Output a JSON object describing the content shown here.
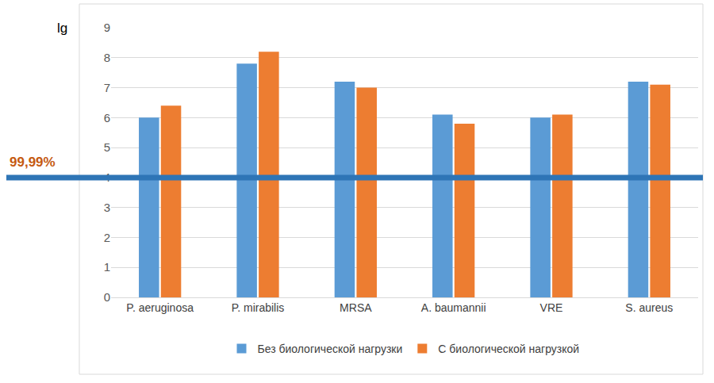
{
  "chart_data": {
    "type": "bar",
    "y_label": "lg",
    "categories": [
      "P. aeruginosa",
      "P. mirabilis",
      "MRSA",
      "A. baumannii",
      "VRE",
      "S. aureus"
    ],
    "series": [
      {
        "name": "Без биологической нагрузки",
        "color": "#5b9bd5",
        "values": [
          6.0,
          7.8,
          7.2,
          6.1,
          6.0,
          7.2
        ]
      },
      {
        "name": "С биологической нагрузкой",
        "color": "#ed7d31",
        "values": [
          6.4,
          8.2,
          7.0,
          5.8,
          6.1,
          7.1
        ]
      }
    ],
    "ylim": [
      0,
      9
    ],
    "yticks": [
      0,
      1,
      2,
      3,
      4,
      5,
      6,
      7,
      8,
      9
    ],
    "grid": true,
    "legend": "bottom",
    "reference_lines": [
      {
        "y": 4,
        "label": "99,99%",
        "color": "#2e75b6",
        "label_color": "#c55a11"
      }
    ]
  }
}
